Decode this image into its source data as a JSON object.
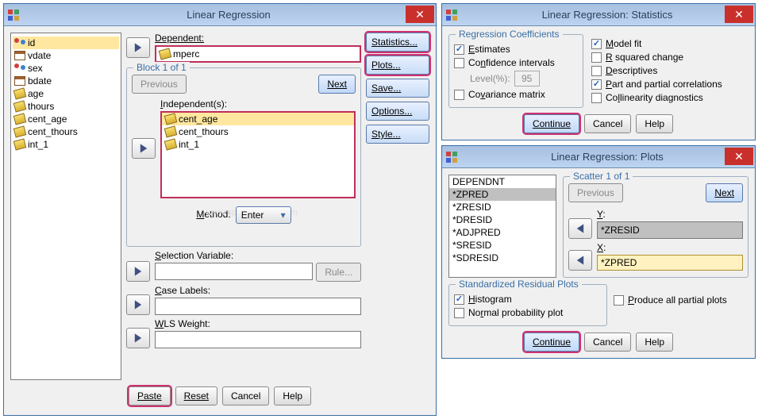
{
  "colors": {
    "titlebar_bg": "#bcd4f0",
    "highlight_border": "#d03070",
    "fieldset_border": "#a0b0c0",
    "dialog_bg": "#f0f0f0",
    "close_bg": "#c9302c"
  },
  "main": {
    "title": "Linear Regression",
    "variables": [
      {
        "name": "id",
        "icon": "nominal",
        "selected": true
      },
      {
        "name": "vdate",
        "icon": "date"
      },
      {
        "name": "sex",
        "icon": "nominal"
      },
      {
        "name": "bdate",
        "icon": "date"
      },
      {
        "name": "age",
        "icon": "scale"
      },
      {
        "name": "thours",
        "icon": "scale"
      },
      {
        "name": "cent_age",
        "icon": "scale"
      },
      {
        "name": "cent_thours",
        "icon": "scale"
      },
      {
        "name": "int_1",
        "icon": "scale"
      }
    ],
    "dependent_label": "Dependent:",
    "dependent_value": "mperc",
    "block_label": "Block 1 of 1",
    "previous_label": "Previous",
    "next_label": "Next",
    "independent_label": "Independent(s):",
    "independents": [
      {
        "name": "cent_age",
        "selected": true
      },
      {
        "name": "cent_thours"
      },
      {
        "name": "int_1"
      }
    ],
    "method_label": "Method:",
    "method_value": "Enter",
    "selection_label": "Selection Variable:",
    "rule_label": "Rule...",
    "case_labels_label": "Case Labels:",
    "wls_label": "WLS Weight:",
    "side_buttons": {
      "statistics": "Statistics...",
      "plots": "Plots...",
      "save": "Save...",
      "options": "Options...",
      "style": "Style..."
    },
    "bottom": {
      "paste": "Paste",
      "reset": "Reset",
      "cancel": "Cancel",
      "help": "Help"
    },
    "watermark": "www.spss-tutorials.com"
  },
  "stats": {
    "title": "Linear Regression: Statistics",
    "reg_coef_label": "Regression Coefficients",
    "estimates": "Estimates",
    "conf_int": "Confidence intervals",
    "level_label": "Level(%):",
    "level_value": "95",
    "cov_matrix": "Covariance matrix",
    "model_fit": "Model fit",
    "r_squared": "R squared change",
    "descriptives": "Descriptives",
    "part_partial": "Part and partial correlations",
    "collinearity": "Collinearity diagnostics",
    "continue": "Continue",
    "cancel": "Cancel",
    "help": "Help"
  },
  "plots": {
    "title": "Linear Regression: Plots",
    "source_list": [
      "DEPENDNT",
      "*ZPRED",
      "*ZRESID",
      "*DRESID",
      "*ADJPRED",
      "*SRESID",
      "*SDRESID"
    ],
    "selected_index": 1,
    "scatter_label": "Scatter 1 of 1",
    "previous": "Previous",
    "next": "Next",
    "y_label": "Y:",
    "y_value": "*ZRESID",
    "x_label": "X:",
    "x_value": "*ZPRED",
    "std_resid_label": "Standardized Residual Plots",
    "histogram": "Histogram",
    "normal_prob": "Normal probability plot",
    "produce_all": "Produce all partial plots",
    "continue": "Continue",
    "cancel": "Cancel",
    "help": "Help"
  }
}
